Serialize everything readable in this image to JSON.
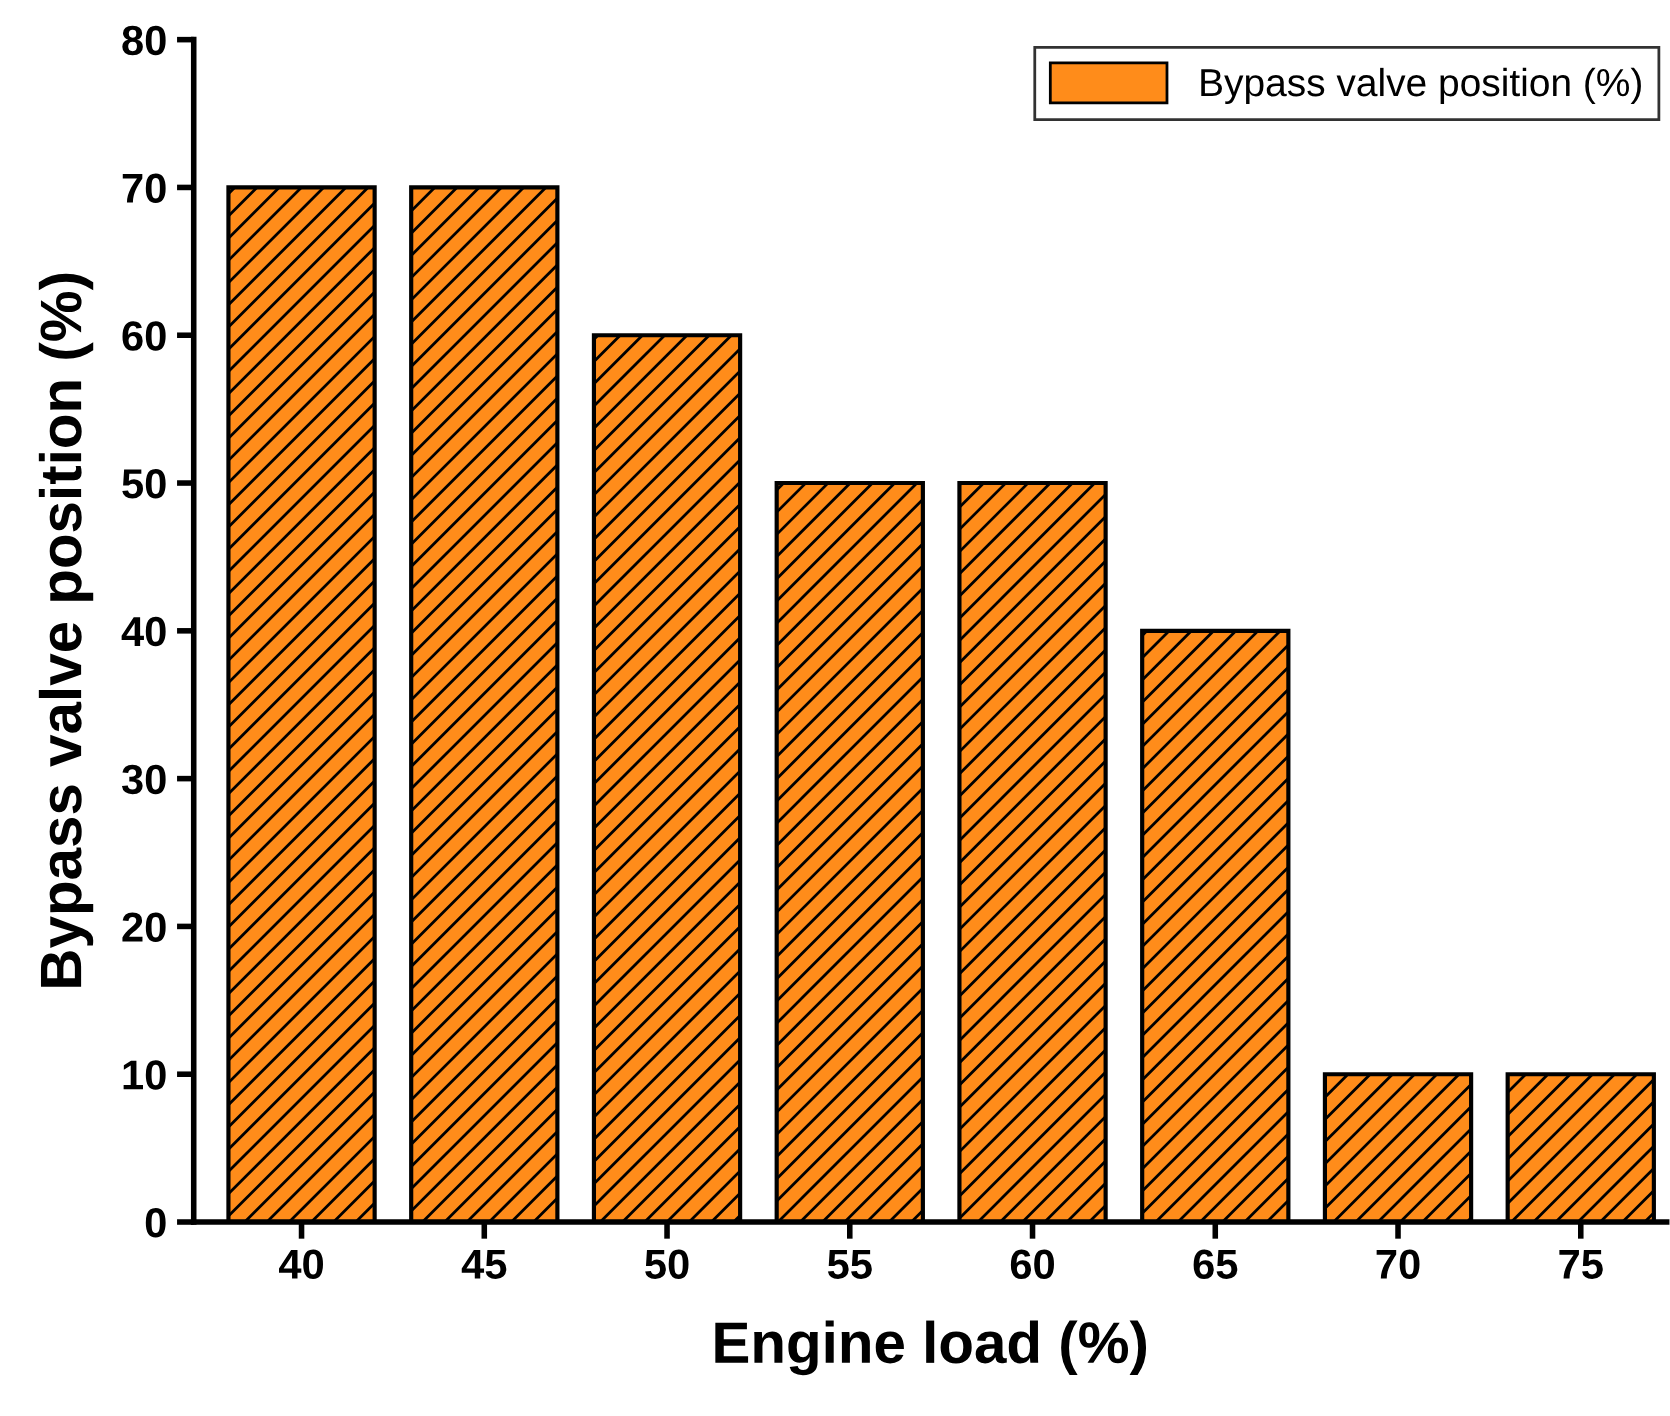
{
  "chart_data": {
    "type": "bar",
    "xlabel": "Engine load (%)",
    "ylabel": "Bypass valve position (%)",
    "categories": [
      "40",
      "45",
      "50",
      "55",
      "60",
      "65",
      "70",
      "75"
    ],
    "series": [
      {
        "name": "Bypass valve position (%)",
        "color": "#ff8c1a",
        "values": [
          70,
          70,
          60,
          50,
          50,
          40,
          10,
          10
        ]
      }
    ],
    "ylim": [
      0,
      80
    ],
    "yticks": [
      0,
      10,
      20,
      30,
      40,
      50,
      60,
      70,
      80
    ],
    "grid": false,
    "legend": "top right"
  }
}
